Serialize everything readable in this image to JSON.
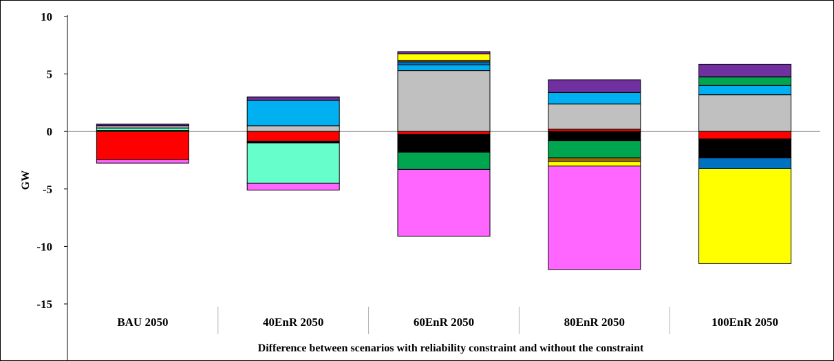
{
  "chart_data": {
    "type": "bar",
    "stacked": true,
    "title": "",
    "xlabel": "Difference between scenarios with reliability constraint and without the constraint",
    "ylabel": "GW",
    "ylim": [
      -15,
      10
    ],
    "yticks": [
      10,
      5,
      0,
      -5,
      -10,
      -15
    ],
    "ytick_labels": [
      "10",
      "5",
      "0",
      "-5",
      "-10",
      "-15"
    ],
    "grid": false,
    "legend": "none",
    "categories": [
      "BAU 2050",
      "40EnR 2050",
      "60EnR 2050",
      "80EnR 2050",
      "100EnR 2050"
    ],
    "segments": [
      [
        {
          "from": 0,
          "to": 0.1,
          "color": "#00A550"
        },
        {
          "from": 0.1,
          "to": 0.3,
          "color": "#66FFCC"
        },
        {
          "from": 0.3,
          "to": 0.5,
          "color": "#C0C0C0"
        },
        {
          "from": 0.5,
          "to": 0.65,
          "color": "#7030A0"
        },
        {
          "from": 0,
          "to": -2.45,
          "color": "#FF0000"
        },
        {
          "from": -2.45,
          "to": -2.75,
          "color": "#FF66FF"
        }
      ],
      [
        {
          "from": 0,
          "to": 0.5,
          "color": "#C0C0C0"
        },
        {
          "from": 0.5,
          "to": 2.7,
          "color": "#00B0F0"
        },
        {
          "from": 2.7,
          "to": 3.0,
          "color": "#7030A0"
        },
        {
          "from": 0,
          "to": -0.85,
          "color": "#FF0000"
        },
        {
          "from": -0.85,
          "to": -1.0,
          "color": "#000000"
        },
        {
          "from": -1.0,
          "to": -4.5,
          "color": "#66FFCC"
        },
        {
          "from": -4.5,
          "to": -5.1,
          "color": "#FF66FF"
        }
      ],
      [
        {
          "from": 0,
          "to": 5.3,
          "color": "#C0C0C0"
        },
        {
          "from": 5.3,
          "to": 5.8,
          "color": "#00B0F0"
        },
        {
          "from": 5.8,
          "to": 6.05,
          "color": "#0070C0"
        },
        {
          "from": 6.05,
          "to": 6.2,
          "color": "#996600"
        },
        {
          "from": 6.2,
          "to": 6.75,
          "color": "#FFFF00"
        },
        {
          "from": 6.75,
          "to": 6.95,
          "color": "#7030A0"
        },
        {
          "from": 0,
          "to": -0.25,
          "color": "#FF0000"
        },
        {
          "from": -0.25,
          "to": -1.8,
          "color": "#000000"
        },
        {
          "from": -1.8,
          "to": -3.3,
          "color": "#00A550"
        },
        {
          "from": -3.3,
          "to": -9.1,
          "color": "#FF66FF"
        }
      ],
      [
        {
          "from": 0,
          "to": 0.2,
          "color": "#FF0000"
        },
        {
          "from": 0.2,
          "to": 2.4,
          "color": "#C0C0C0"
        },
        {
          "from": 2.4,
          "to": 3.4,
          "color": "#00B0F0"
        },
        {
          "from": 3.4,
          "to": 4.5,
          "color": "#7030A0"
        },
        {
          "from": 0,
          "to": -0.8,
          "color": "#000000"
        },
        {
          "from": -0.8,
          "to": -2.3,
          "color": "#00A550"
        },
        {
          "from": -2.3,
          "to": -2.6,
          "color": "#996600"
        },
        {
          "from": -2.6,
          "to": -3.0,
          "color": "#FFFF00"
        },
        {
          "from": -3.0,
          "to": -12.0,
          "color": "#FF66FF"
        }
      ],
      [
        {
          "from": 0,
          "to": 3.2,
          "color": "#C0C0C0"
        },
        {
          "from": 3.2,
          "to": 4.0,
          "color": "#00B0F0"
        },
        {
          "from": 4.0,
          "to": 4.75,
          "color": "#00A550"
        },
        {
          "from": 4.75,
          "to": 5.85,
          "color": "#7030A0"
        },
        {
          "from": 0,
          "to": -0.65,
          "color": "#FF0000"
        },
        {
          "from": -0.65,
          "to": -2.3,
          "color": "#000000"
        },
        {
          "from": -2.3,
          "to": -3.25,
          "color": "#0070C0"
        },
        {
          "from": -3.25,
          "to": -11.5,
          "color": "#FFFF00"
        }
      ]
    ]
  }
}
